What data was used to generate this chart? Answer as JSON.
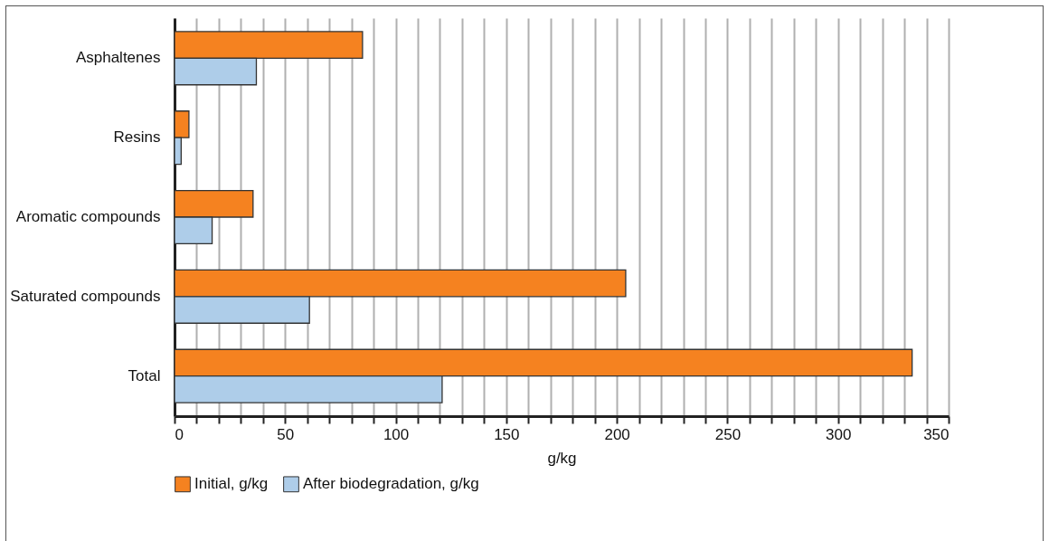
{
  "chart_data": {
    "type": "bar",
    "orientation": "horizontal",
    "categories": [
      "Asphaltenes",
      "Resins",
      "Aromatic compounds",
      "Saturated compounds",
      "Total"
    ],
    "series": [
      {
        "name": "Initial, g/kg",
        "color": "#f58220",
        "values": [
          85,
          6.5,
          35.5,
          204,
          333.5
        ]
      },
      {
        "name": "After biodegradation, g/kg",
        "color": "#aecde9",
        "values": [
          37,
          3,
          17,
          61,
          121
        ]
      }
    ],
    "xlabel": "g/kg",
    "xlim": [
      0,
      350
    ],
    "xticks": [
      0,
      {
        "value": 10,
        "label": null
      },
      {
        "value": 20,
        "label": null
      },
      {
        "value": 30,
        "label": null
      },
      {
        "value": 40,
        "label": null
      },
      50,
      {
        "value": 60,
        "label": null
      },
      {
        "value": 70,
        "label": null
      },
      {
        "value": 80,
        "label": null
      },
      {
        "value": 90,
        "label": null
      },
      100,
      {
        "value": 110,
        "label": null
      },
      {
        "value": 120,
        "label": null
      },
      {
        "value": 130,
        "label": null
      },
      {
        "value": 140,
        "label": null
      },
      150,
      {
        "value": 160,
        "label": null
      },
      {
        "value": 170,
        "label": null
      },
      {
        "value": 180,
        "label": null
      },
      {
        "value": 190,
        "label": null
      },
      200,
      {
        "value": 210,
        "label": null
      },
      {
        "value": 220,
        "label": null
      },
      {
        "value": 230,
        "label": null
      },
      {
        "value": 240,
        "label": null
      },
      250,
      {
        "value": 260,
        "label": null
      },
      {
        "value": 270,
        "label": null
      },
      {
        "value": 280,
        "label": null
      },
      {
        "value": 290,
        "label": null
      },
      300,
      {
        "value": 310,
        "label": null
      },
      {
        "value": 320,
        "label": null
      },
      {
        "value": 330,
        "label": null
      },
      {
        "value": 340,
        "label": null
      },
      350
    ],
    "grid": "x",
    "legend": "bottom"
  }
}
